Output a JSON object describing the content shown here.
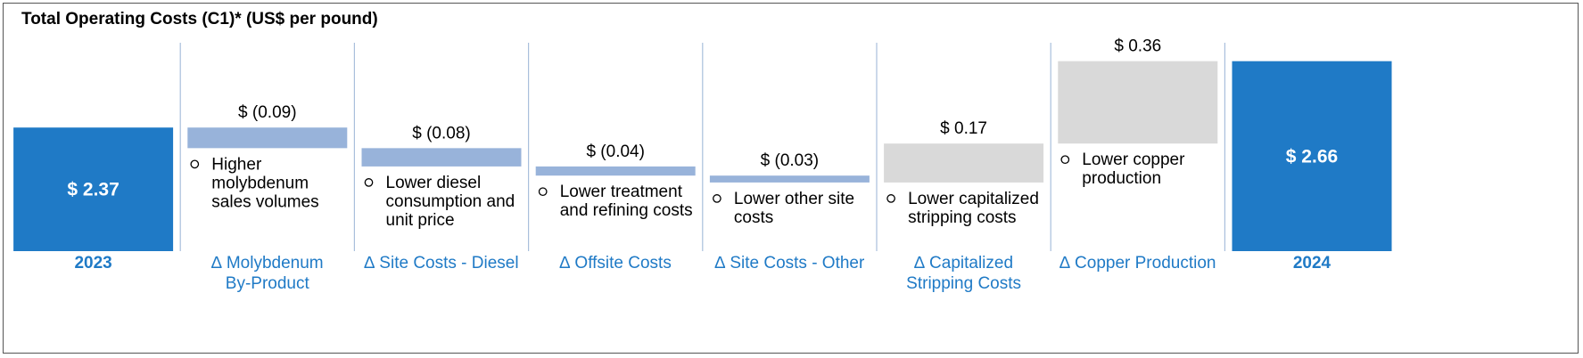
{
  "title": "Total Operating Costs (C1)* (US$ per pound)",
  "colors": {
    "total": "#1f7ac6",
    "decrease": "#98b3da",
    "increase": "#d9d9d9",
    "category_text": "#1f7ac6",
    "divider": "#a9bfdc"
  },
  "chart_data": {
    "type": "bar",
    "subtype": "waterfall",
    "title": "Total Operating Costs (C1)* (US$ per pound)",
    "categories": [
      [
        "2023"
      ],
      [
        "∆ Molybdenum",
        "By-Product"
      ],
      [
        "∆ Site Costs - Diesel"
      ],
      [
        "∆ Offsite Costs"
      ],
      [
        "∆ Site Costs - Other"
      ],
      [
        "∆ Capitalized",
        "Stripping Costs"
      ],
      [
        "∆ Copper Production"
      ],
      [
        "2024"
      ]
    ],
    "values": [
      2.37,
      -0.09,
      -0.08,
      -0.04,
      -0.03,
      0.17,
      0.36,
      2.66
    ],
    "kinds": [
      "total",
      "decrease",
      "decrease",
      "decrease",
      "decrease",
      "increase",
      "increase",
      "total"
    ],
    "value_labels": [
      "$ 2.37",
      "$ (0.09)",
      "$ (0.08)",
      "$ (0.04)",
      "$ (0.03)",
      "$ 0.17",
      "$ 0.36",
      "$ 2.66"
    ],
    "notes": [
      [],
      [
        "Higher",
        "molybdenum",
        "sales volumes"
      ],
      [
        "Lower diesel",
        "consumption and",
        "unit price"
      ],
      [
        "Lower treatment",
        "and refining costs"
      ],
      [
        "Lower other site",
        "costs"
      ],
      [
        "Lower capitalized",
        "stripping costs"
      ],
      [
        "Lower copper",
        "production"
      ],
      []
    ],
    "ylim": [
      1.83,
      2.84
    ]
  }
}
